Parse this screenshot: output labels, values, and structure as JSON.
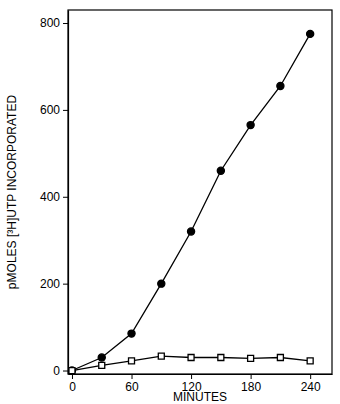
{
  "chart_data": {
    "type": "line",
    "x_label": "MINUTES",
    "y_label": "pMOLES [³H]UTP INCORPORATED",
    "x": [
      0,
      30,
      60,
      90,
      120,
      150,
      180,
      210,
      240
    ],
    "series": [
      {
        "color": "#000000",
        "marker": "circle",
        "line_style": "solid",
        "values": [
          0,
          30,
          85,
          200,
          320,
          460,
          565,
          655,
          775
        ]
      },
      {
        "color": "#000000",
        "marker": "square-open",
        "line_style": "solid",
        "values": [
          0,
          12,
          22,
          33,
          30,
          30,
          28,
          30,
          22
        ]
      }
    ],
    "xlim": [
      -4,
      262
    ],
    "ylim": [
      -8,
      830
    ],
    "xticks": [
      0,
      60,
      120,
      180,
      240
    ],
    "yticks": [
      0,
      200,
      400,
      600,
      800
    ],
    "grid": false
  }
}
